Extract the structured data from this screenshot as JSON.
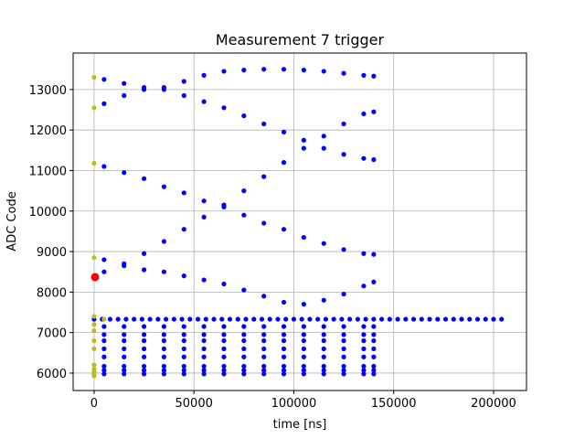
{
  "chart_data": {
    "type": "scatter",
    "title": "Measurement 7 trigger",
    "x_label": "time [ns]",
    "y_label": "ADC Code",
    "xlim": [
      -10500,
      216500
    ],
    "ylim": [
      5570,
      13900
    ],
    "xticks": [
      0,
      50000,
      100000,
      150000,
      200000
    ],
    "yticks": [
      6000,
      7000,
      8000,
      9000,
      10000,
      11000,
      12000,
      13000
    ],
    "grid": true,
    "series": [
      {
        "color": "#0000ff",
        "x": [
          5000,
          15000,
          25000,
          35000,
          45000,
          55000,
          65000,
          75000,
          85000,
          95000,
          105000,
          115000,
          125000,
          135000,
          140000
        ],
        "values": [
          13250,
          13150,
          13050,
          13050,
          13200,
          13350,
          13450,
          13480,
          13500,
          13500,
          13480,
          13450,
          13400,
          13350,
          13330
        ]
      },
      {
        "color": "#0000ff",
        "x": [
          5000,
          15000,
          25000,
          35000,
          45000,
          55000,
          65000,
          75000,
          85000,
          95000,
          105000,
          115000,
          125000,
          135000,
          140000
        ],
        "values": [
          12650,
          12850,
          13000,
          13000,
          12850,
          12700,
          12550,
          12350,
          12150,
          11950,
          11750,
          11550,
          11400,
          11300,
          11270
        ]
      },
      {
        "color": "#0000ff",
        "x": [
          5000,
          15000,
          25000,
          35000,
          45000,
          55000,
          65000,
          75000,
          85000,
          95000,
          105000,
          115000,
          125000,
          135000,
          140000
        ],
        "values": [
          11100,
          10950,
          10800,
          10600,
          10450,
          10250,
          10100,
          9900,
          9700,
          9550,
          9350,
          9200,
          9050,
          8950,
          8930
        ]
      },
      {
        "color": "#0000ff",
        "x": [
          5000,
          15000,
          25000,
          35000,
          45000,
          55000,
          65000,
          75000,
          85000,
          95000,
          105000,
          115000,
          125000,
          135000,
          140000
        ],
        "values": [
          8500,
          8700,
          8950,
          9250,
          9550,
          9850,
          10150,
          10500,
          10850,
          11200,
          11550,
          11850,
          12150,
          12400,
          12450
        ]
      },
      {
        "color": "#0000ff",
        "x": [
          5000,
          15000,
          25000,
          35000,
          45000,
          55000,
          65000,
          75000,
          85000,
          95000,
          105000,
          115000,
          125000,
          135000,
          140000
        ],
        "values": [
          8800,
          8650,
          8550,
          8500,
          8400,
          8300,
          8200,
          8050,
          7900,
          7750,
          7700,
          7800,
          7950,
          8150,
          8250
        ]
      },
      {
        "color": "#0000ff",
        "x": [
          5000,
          15000,
          25000,
          35000,
          45000,
          55000,
          65000,
          75000,
          85000,
          95000,
          105000,
          115000,
          125000,
          135000,
          140000
        ],
        "values": [
          7150,
          7150,
          7150,
          7150,
          7150,
          7150,
          7150,
          7150,
          7150,
          7150,
          7150,
          7150,
          7150,
          7150,
          7150
        ]
      },
      {
        "color": "#0000ff",
        "x": [
          5000,
          15000,
          25000,
          35000,
          45000,
          55000,
          65000,
          75000,
          85000,
          95000,
          105000,
          115000,
          125000,
          135000,
          140000
        ],
        "values": [
          6950,
          6950,
          6950,
          6950,
          6950,
          6950,
          6950,
          6950,
          6950,
          6950,
          6950,
          6950,
          6950,
          6950,
          6950
        ]
      },
      {
        "color": "#0000ff",
        "x": [
          5000,
          15000,
          25000,
          35000,
          45000,
          55000,
          65000,
          75000,
          85000,
          95000,
          105000,
          115000,
          125000,
          135000,
          140000
        ],
        "values": [
          6800,
          6800,
          6800,
          6800,
          6800,
          6800,
          6800,
          6800,
          6800,
          6800,
          6800,
          6800,
          6800,
          6800,
          6800
        ]
      },
      {
        "color": "#0000ff",
        "x": [
          5000,
          15000,
          25000,
          35000,
          45000,
          55000,
          65000,
          75000,
          85000,
          95000,
          105000,
          115000,
          125000,
          135000,
          140000
        ],
        "values": [
          6600,
          6600,
          6600,
          6600,
          6600,
          6600,
          6600,
          6600,
          6600,
          6600,
          6600,
          6600,
          6600,
          6600,
          6600
        ]
      },
      {
        "color": "#0000ff",
        "x": [
          5000,
          15000,
          25000,
          35000,
          45000,
          55000,
          65000,
          75000,
          85000,
          95000,
          105000,
          115000,
          125000,
          135000,
          140000
        ],
        "values": [
          6400,
          6400,
          6400,
          6400,
          6400,
          6400,
          6400,
          6400,
          6400,
          6400,
          6400,
          6400,
          6400,
          6400,
          6400
        ]
      },
      {
        "color": "#0000ff",
        "x": [
          5000,
          15000,
          25000,
          35000,
          45000,
          55000,
          65000,
          75000,
          85000,
          95000,
          105000,
          115000,
          125000,
          135000,
          140000
        ],
        "values": [
          6170,
          6170,
          6170,
          6170,
          6170,
          6170,
          6170,
          6170,
          6170,
          6170,
          6170,
          6170,
          6170,
          6170,
          6170
        ]
      },
      {
        "color": "#0000ff",
        "x": [
          5000,
          15000,
          25000,
          35000,
          45000,
          55000,
          65000,
          75000,
          85000,
          95000,
          105000,
          115000,
          125000,
          135000,
          140000
        ],
        "values": [
          6070,
          6070,
          6070,
          6070,
          6070,
          6070,
          6070,
          6070,
          6070,
          6070,
          6070,
          6070,
          6070,
          6070,
          6070
        ]
      },
      {
        "color": "#0000ff",
        "x": [
          5000,
          15000,
          25000,
          35000,
          45000,
          55000,
          65000,
          75000,
          85000,
          95000,
          105000,
          115000,
          125000,
          135000,
          140000
        ],
        "values": [
          5980,
          5980,
          5980,
          5980,
          5980,
          5980,
          5980,
          5980,
          5980,
          5980,
          5980,
          5980,
          5980,
          5980,
          5980
        ]
      },
      {
        "color": "#0000ff",
        "x": [
          0,
          4000,
          8000,
          12000,
          16000,
          20000,
          24000,
          28000,
          32000,
          36000,
          40000,
          44000,
          48000,
          52000,
          56000,
          60000,
          64000,
          68000,
          72000,
          76000,
          80000,
          84000,
          88000,
          92000,
          96000,
          100000,
          104000,
          108000,
          112000,
          116000,
          120000,
          124000,
          128000,
          132000,
          136000,
          140000,
          144000,
          148000,
          152000,
          156000,
          160000,
          164000,
          168000,
          172000,
          176000,
          180000,
          184000,
          188000,
          192000,
          196000,
          200000,
          204000
        ],
        "values": [
          7330,
          7330,
          7330,
          7330,
          7330,
          7330,
          7330,
          7330,
          7330,
          7330,
          7330,
          7330,
          7330,
          7330,
          7330,
          7330,
          7330,
          7330,
          7330,
          7330,
          7330,
          7330,
          7330,
          7330,
          7330,
          7330,
          7330,
          7330,
          7330,
          7330,
          7330,
          7330,
          7330,
          7330,
          7330,
          7330,
          7330,
          7330,
          7330,
          7330,
          7330,
          7330,
          7330,
          7330,
          7330,
          7330,
          7330,
          7330,
          7330,
          7330,
          7330,
          7330
        ]
      },
      {
        "color": "#bcbd22",
        "x": [
          0,
          0,
          0,
          0,
          0,
          0,
          0,
          0,
          0,
          0,
          0,
          0,
          0,
          0,
          5000
        ],
        "values": [
          13300,
          12550,
          11180,
          8850,
          7400,
          7200,
          7050,
          6800,
          6600,
          6200,
          6100,
          6030,
          5970,
          5930,
          7330
        ]
      },
      {
        "color": "#ff0000",
        "x": [
          500
        ],
        "values": [
          8370
        ]
      }
    ]
  }
}
